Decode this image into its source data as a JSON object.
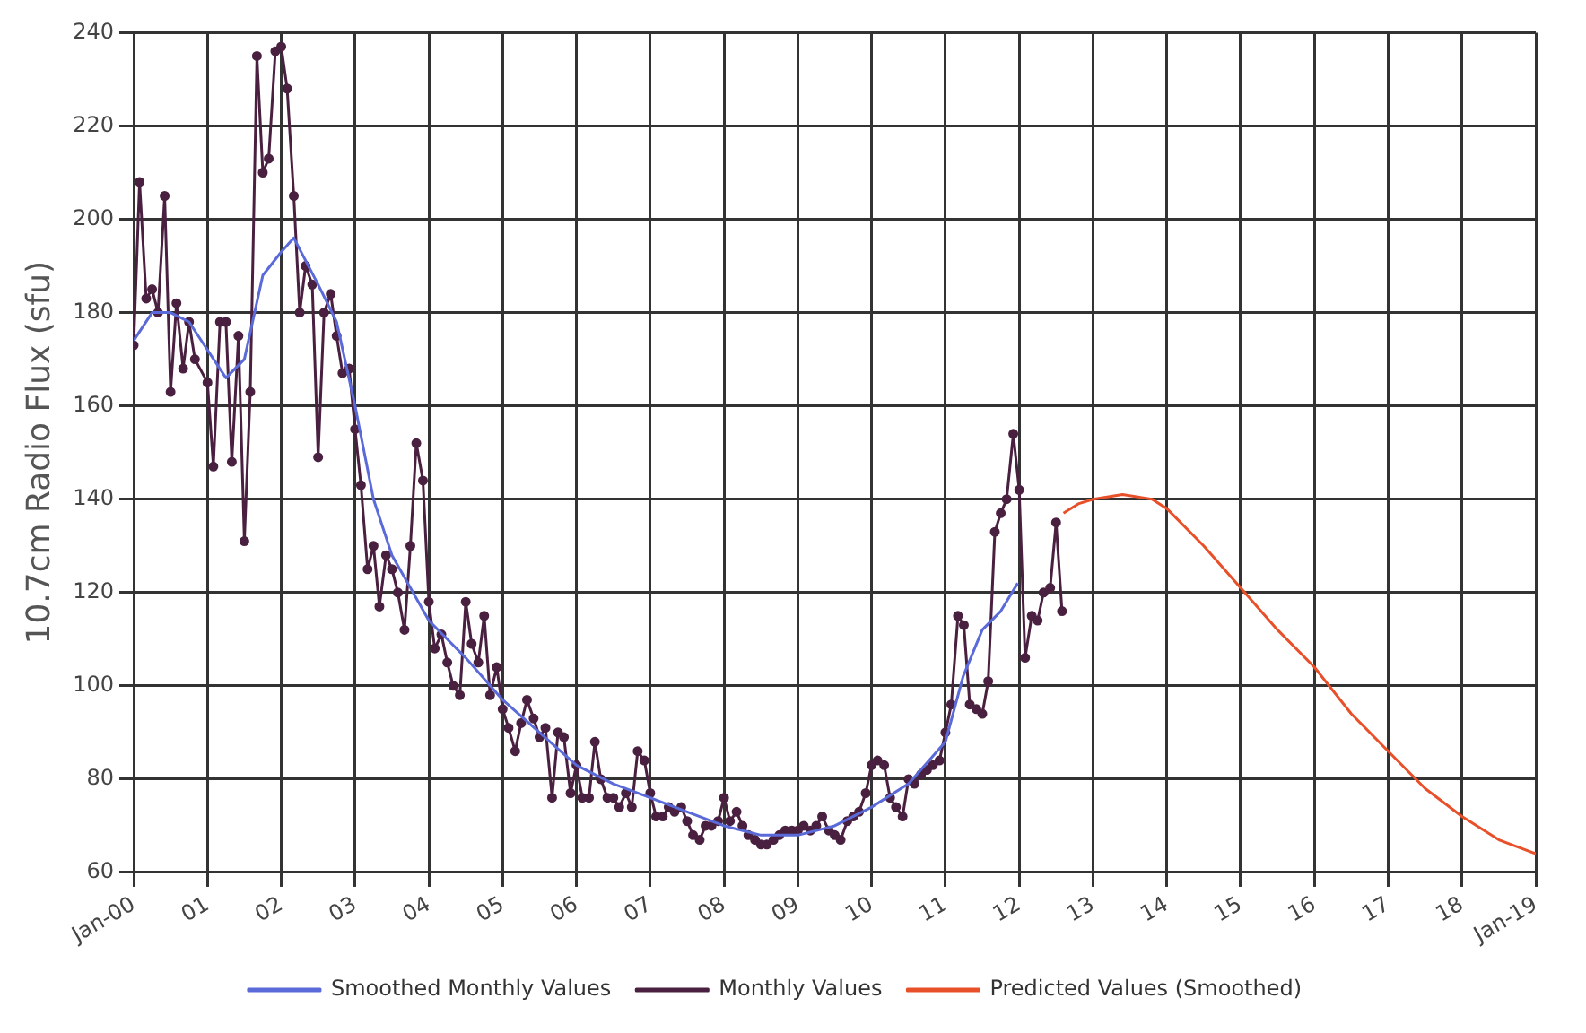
{
  "chart_data": {
    "type": "line",
    "ylabel": "10.7cm Radio Flux (sfu)",
    "xlim": [
      2000,
      2019
    ],
    "xticks": [
      {
        "value": 2000,
        "label": "Jan-00"
      },
      {
        "value": 2001,
        "label": "01"
      },
      {
        "value": 2002,
        "label": "02"
      },
      {
        "value": 2003,
        "label": "03"
      },
      {
        "value": 2004,
        "label": "04"
      },
      {
        "value": 2005,
        "label": "05"
      },
      {
        "value": 2006,
        "label": "06"
      },
      {
        "value": 2007,
        "label": "07"
      },
      {
        "value": 2008,
        "label": "08"
      },
      {
        "value": 2009,
        "label": "09"
      },
      {
        "value": 2010,
        "label": "10"
      },
      {
        "value": 2011,
        "label": "11"
      },
      {
        "value": 2012,
        "label": "12"
      },
      {
        "value": 2013,
        "label": "13"
      },
      {
        "value": 2014,
        "label": "14"
      },
      {
        "value": 2015,
        "label": "15"
      },
      {
        "value": 2016,
        "label": "16"
      },
      {
        "value": 2017,
        "label": "17"
      },
      {
        "value": 2018,
        "label": "18"
      },
      {
        "value": 2019,
        "label": "Jan-19"
      }
    ],
    "ylim": [
      60,
      240
    ],
    "yticks": [
      60,
      80,
      100,
      120,
      140,
      160,
      180,
      200,
      220,
      240
    ],
    "grid": true,
    "legend": "bottom",
    "series": [
      {
        "name": "Smoothed Monthly Values",
        "color": "#5a6ad8",
        "marker": "none",
        "x": [
          2000.0,
          2000.25,
          2000.5,
          2000.75,
          2001.0,
          2001.25,
          2001.5,
          2001.75,
          2002.0,
          2002.17,
          2002.5,
          2002.75,
          2003.0,
          2003.25,
          2003.5,
          2003.75,
          2004.0,
          2004.5,
          2005.0,
          2005.5,
          2006.0,
          2006.5,
          2007.0,
          2007.5,
          2008.0,
          2008.5,
          2009.0,
          2009.5,
          2010.0,
          2010.5,
          2011.0,
          2011.24,
          2011.5,
          2011.75,
          2011.98
        ],
        "values": [
          174,
          180,
          180,
          178,
          172,
          166,
          170,
          188,
          193,
          196,
          186,
          178,
          160,
          140,
          128,
          121,
          114,
          106,
          97,
          90,
          83,
          79,
          76,
          73,
          70,
          68,
          68,
          70,
          74,
          79,
          88,
          102,
          112,
          116,
          122
        ]
      },
      {
        "name": "Monthly Values",
        "color": "#4a2040",
        "marker": "circle",
        "x": [
          2000.0,
          2000.08,
          2000.17,
          2000.25,
          2000.33,
          2000.42,
          2000.5,
          2000.58,
          2000.67,
          2000.75,
          2000.83,
          2001.0,
          2001.08,
          2001.17,
          2001.25,
          2001.33,
          2001.42,
          2001.5,
          2001.58,
          2001.67,
          2001.75,
          2001.83,
          2001.92,
          2002.0,
          2002.08,
          2002.17,
          2002.25,
          2002.33,
          2002.42,
          2002.5,
          2002.58,
          2002.67,
          2002.75,
          2002.83,
          2002.92,
          2003.0,
          2003.08,
          2003.17,
          2003.25,
          2003.33,
          2003.42,
          2003.5,
          2003.58,
          2003.67,
          2003.75,
          2003.83,
          2003.92,
          2004.0,
          2004.08,
          2004.17,
          2004.25,
          2004.33,
          2004.42,
          2004.5,
          2004.58,
          2004.67,
          2004.75,
          2004.83,
          2004.92,
          2005.0,
          2005.08,
          2005.17,
          2005.25,
          2005.33,
          2005.42,
          2005.5,
          2005.58,
          2005.67,
          2005.75,
          2005.83,
          2005.92,
          2006.0,
          2006.08,
          2006.17,
          2006.25,
          2006.33,
          2006.42,
          2006.5,
          2006.58,
          2006.67,
          2006.75,
          2006.83,
          2006.92,
          2007.0,
          2007.08,
          2007.17,
          2007.25,
          2007.33,
          2007.42,
          2007.5,
          2007.58,
          2007.67,
          2007.75,
          2007.83,
          2007.92,
          2008.0,
          2008.08,
          2008.17,
          2008.25,
          2008.33,
          2008.42,
          2008.5,
          2008.58,
          2008.67,
          2008.75,
          2008.83,
          2008.92,
          2009.0,
          2009.08,
          2009.17,
          2009.25,
          2009.33,
          2009.42,
          2009.5,
          2009.58,
          2009.67,
          2009.75,
          2009.83,
          2009.92,
          2010.0,
          2010.08,
          2010.17,
          2010.25,
          2010.33,
          2010.42,
          2010.5,
          2010.58,
          2010.67,
          2010.75,
          2010.83,
          2010.92,
          2011.0,
          2011.08,
          2011.17,
          2011.25,
          2011.33,
          2011.42,
          2011.5,
          2011.58,
          2011.67,
          2011.75,
          2011.83,
          2011.92,
          2012.0,
          2012.08,
          2012.17,
          2012.25,
          2012.33,
          2012.42,
          2012.5,
          2012.58
        ],
        "values": [
          173,
          208,
          183,
          185,
          180,
          205,
          163,
          182,
          168,
          178,
          170,
          165,
          147,
          178,
          178,
          148,
          175,
          131,
          163,
          235,
          210,
          213,
          236,
          237,
          228,
          205,
          180,
          190,
          186,
          149,
          180,
          184,
          175,
          167,
          168,
          155,
          143,
          125,
          130,
          117,
          128,
          125,
          120,
          112,
          130,
          152,
          144,
          118,
          108,
          111,
          105,
          100,
          98,
          118,
          109,
          105,
          115,
          98,
          104,
          95,
          91,
          86,
          92,
          97,
          93,
          89,
          91,
          76,
          90,
          89,
          77,
          83,
          76,
          76,
          88,
          80,
          76,
          76,
          74,
          77,
          74,
          86,
          84,
          77,
          72,
          72,
          74,
          73,
          74,
          71,
          68,
          67,
          70,
          70,
          71,
          76,
          71,
          73,
          70,
          68,
          67,
          66,
          66,
          67,
          68,
          69,
          69,
          69,
          70,
          69,
          70,
          72,
          69,
          68,
          67,
          71,
          72,
          73,
          77,
          83,
          84,
          83,
          76,
          74,
          72,
          80,
          79,
          81,
          82,
          83,
          84,
          90,
          96,
          115,
          113,
          96,
          95,
          94,
          101,
          133,
          137,
          140,
          154,
          142,
          106,
          115,
          114,
          120,
          121,
          135,
          116
        ]
      },
      {
        "name": "Predicted Values (Smoothed)",
        "color": "#e8502a",
        "marker": "none",
        "x": [
          2012.6,
          2012.8,
          2013.0,
          2013.4,
          2013.8,
          2014.0,
          2014.5,
          2015.0,
          2015.5,
          2016.0,
          2016.5,
          2017.0,
          2017.5,
          2018.0,
          2018.5,
          2019.0
        ],
        "values": [
          137,
          139,
          140,
          141,
          140,
          138,
          130,
          121,
          112,
          104,
          94,
          86,
          78,
          72,
          67,
          64
        ]
      }
    ]
  }
}
